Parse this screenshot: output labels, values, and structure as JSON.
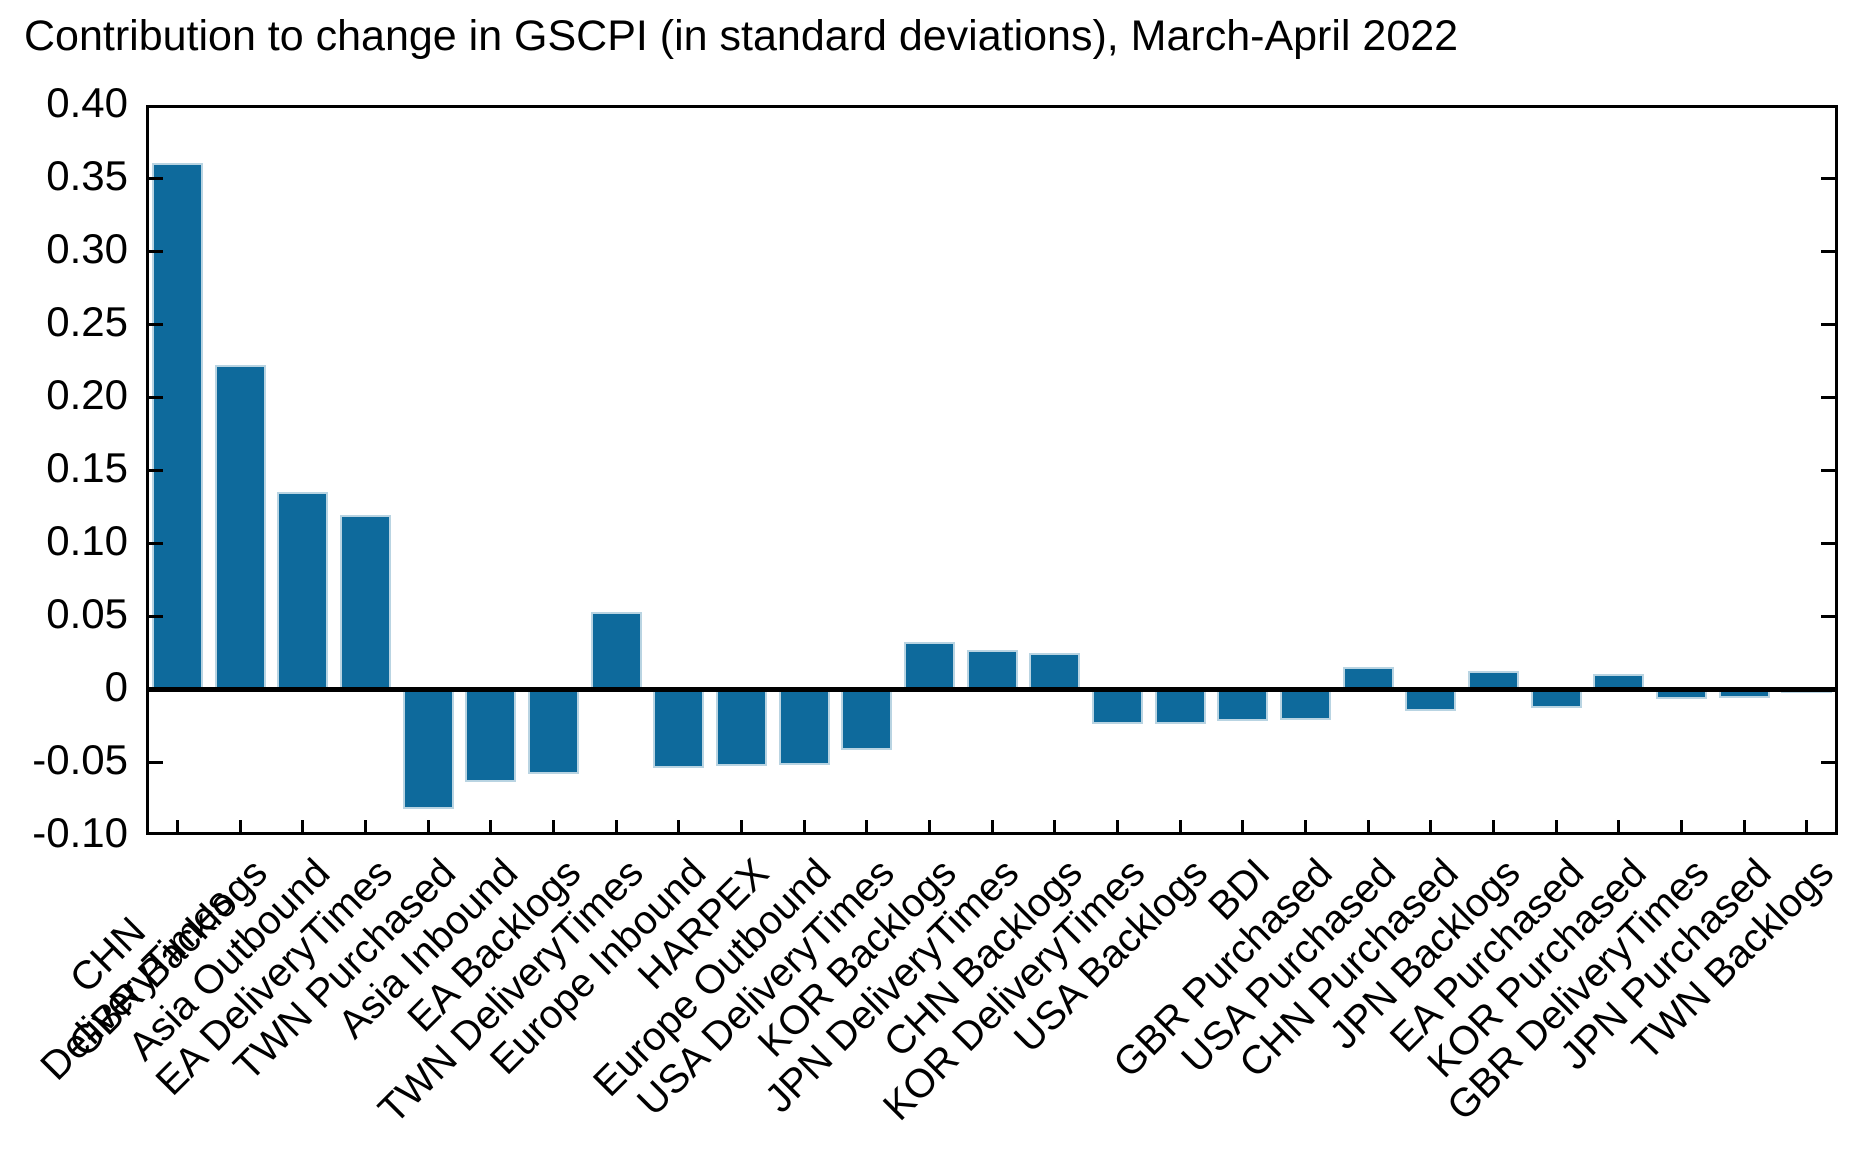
{
  "title": "Contribution to change in GSCPI (in standard deviations), March-April 2022",
  "colors": {
    "bar_fill": "#0e6a9c",
    "bar_edge": "#b9d4e2",
    "axis": "#000000",
    "background": "#ffffff"
  },
  "chart_data": {
    "type": "bar",
    "title": "Contribution to change in GSCPI (in standard deviations), March-April 2022",
    "categories": [
      "CHN\nDeliveryTimes",
      "GBR Backlogs",
      "Asia Outbound",
      "EA DeliveryTimes",
      "TWN Purchased",
      "Asia Inbound",
      "EA Backlogs",
      "TWN DeliveryTimes",
      "Europe Inbound",
      "HARPEX",
      "Europe Outbound",
      "USA DeliveryTimes",
      "KOR Backlogs",
      "JPN DeliveryTimes",
      "CHN Backlogs",
      "KOR DeliveryTimes",
      "USA Backlogs",
      "BDI",
      "GBR Purchased",
      "USA Purchased",
      "CHN Purchased",
      "JPN Backlogs",
      "EA Purchased",
      "KOR Purchased",
      "GBR DeliveryTimes",
      "JPN Purchased",
      "TWN Backlogs"
    ],
    "values": [
      0.36,
      0.222,
      0.135,
      0.119,
      -0.082,
      -0.064,
      -0.058,
      0.053,
      -0.054,
      -0.053,
      -0.052,
      -0.042,
      0.032,
      0.027,
      0.025,
      -0.024,
      -0.024,
      -0.022,
      -0.021,
      0.015,
      -0.015,
      0.012,
      -0.013,
      0.01,
      -0.007,
      -0.006,
      -0.002
    ],
    "xlabel": "",
    "ylabel": "",
    "ylim": [
      -0.1,
      0.4
    ],
    "ytick_labels": [
      "0.40",
      "0.35",
      "0.30",
      "0.25",
      "0.20",
      "0.15",
      "0.10",
      "0.05",
      "0",
      "-0.05",
      "-0.10"
    ],
    "ytick_values": [
      0.4,
      0.35,
      0.3,
      0.25,
      0.2,
      0.15,
      0.1,
      0.05,
      0,
      -0.05,
      -0.1
    ],
    "grid": false,
    "legend": null,
    "x_label_rotation_deg": 45
  }
}
